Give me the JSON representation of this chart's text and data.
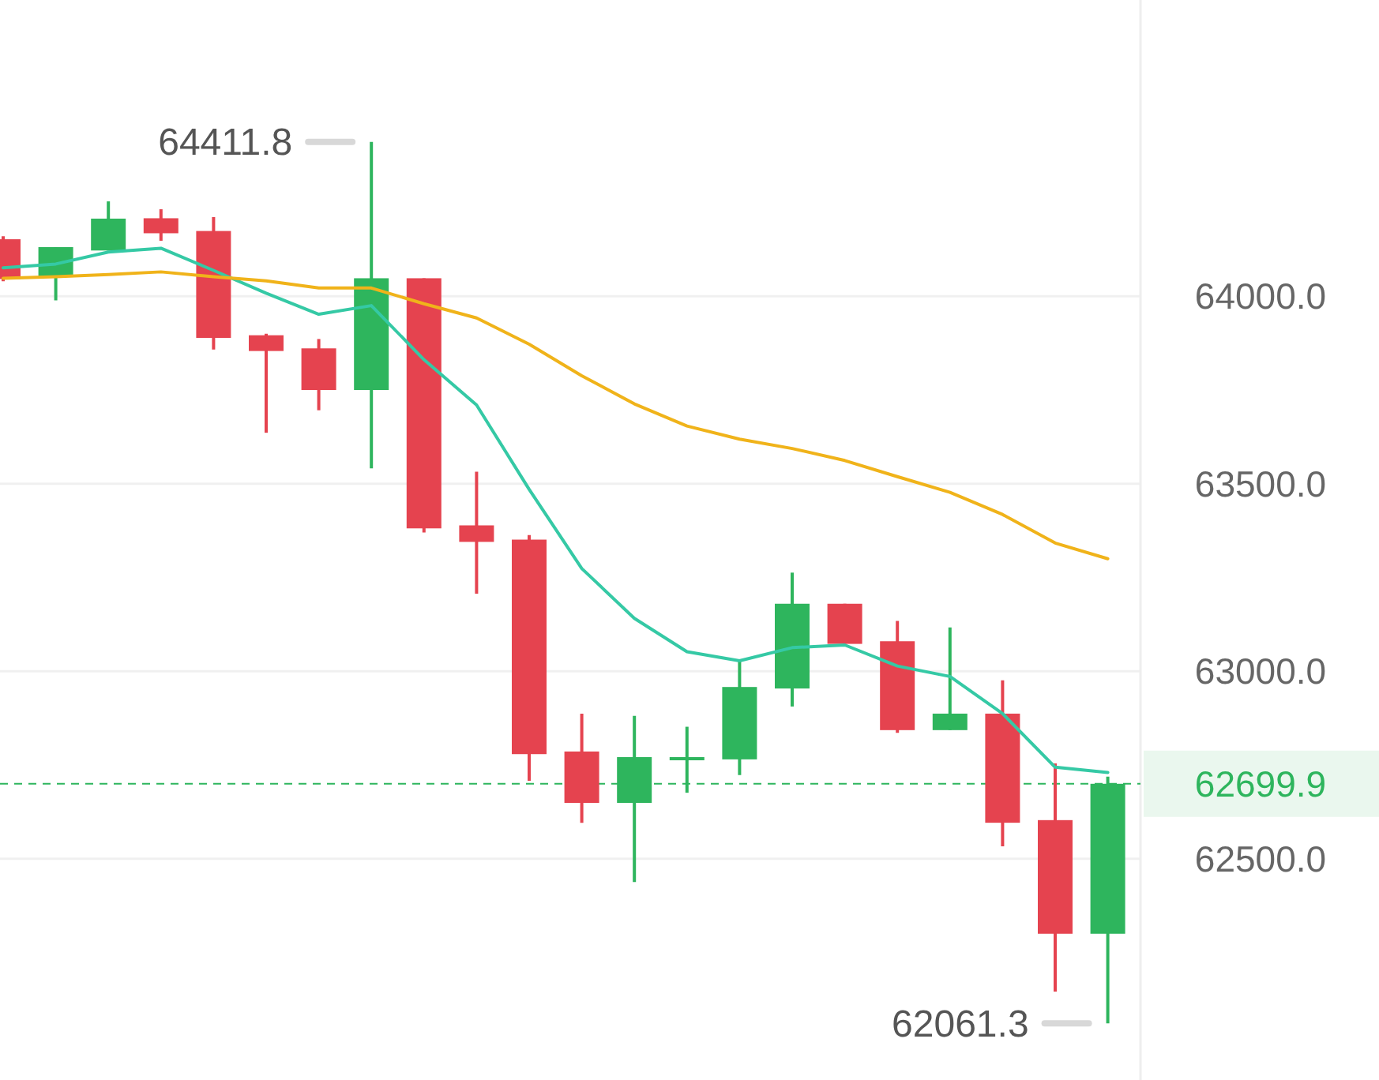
{
  "chart_data": {
    "type": "candlestick",
    "categories": [
      null,
      null,
      null,
      null,
      null,
      null,
      null,
      null,
      null,
      null,
      null,
      null,
      null,
      null,
      null,
      null,
      null,
      null,
      null,
      null,
      null,
      null
    ],
    "ohlc": [
      [
        64152,
        64160,
        64040,
        64046
      ],
      [
        64051,
        64131,
        63989,
        64131
      ],
      [
        64122,
        64253,
        64122,
        64207
      ],
      [
        64208,
        64232,
        64148,
        64168
      ],
      [
        64174,
        64211,
        63858,
        63889
      ],
      [
        63896,
        63900,
        63636,
        63854
      ],
      [
        63861,
        63886,
        63696,
        63750
      ],
      [
        63750,
        64411.8,
        63541,
        64048
      ],
      [
        64048,
        64048,
        63370,
        63381
      ],
      [
        63389,
        63532,
        63207,
        63345
      ],
      [
        63351,
        63363,
        62708,
        62779
      ],
      [
        62786,
        62887,
        62596,
        62649
      ],
      [
        62649,
        62881,
        62438,
        62771
      ],
      [
        62763,
        62852,
        62676,
        62771
      ],
      [
        62765,
        63028,
        62723,
        62958
      ],
      [
        62954,
        63263,
        62906,
        63180
      ],
      [
        63180,
        63180,
        63073,
        63073
      ],
      [
        63080,
        63134,
        62836,
        62843
      ],
      [
        62843,
        63117,
        62843,
        62887
      ],
      [
        62887,
        62976,
        62533,
        62596
      ],
      [
        62603,
        62754,
        62146,
        62300
      ],
      [
        62300,
        62719,
        62061.3,
        62699.9
      ]
    ],
    "colors": [
      "#e5434f",
      "#2eb55d",
      "#2eb55d",
      "#e5434f",
      "#e5434f",
      "#e5434f",
      "#e5434f",
      "#2eb55d",
      "#e5434f",
      "#e5434f",
      "#e5434f",
      "#e5434f",
      "#2eb55d",
      "#2eb55d",
      "#2eb55d",
      "#2eb55d",
      "#e5434f",
      "#e5434f",
      "#2eb55d",
      "#e5434f",
      "#e5434f",
      "#2eb55d"
    ],
    "series": [
      {
        "type": "line",
        "color": "#35c9a5",
        "values": [
          64076,
          64086,
          64118,
          64128,
          64069,
          64008,
          63952,
          63975,
          63831,
          63710,
          63485,
          63274,
          63141,
          63052,
          63028,
          63063,
          63070,
          63014,
          62986,
          62887,
          62744,
          62730
        ]
      },
      {
        "type": "line",
        "color": "#f0b31a",
        "values": [
          64048,
          64052,
          64058,
          64065,
          64052,
          64041,
          64022,
          64022,
          63980,
          63942,
          63872,
          63788,
          63713,
          63654,
          63619,
          63594,
          63562,
          63519,
          63477,
          63418,
          63342,
          63300
        ]
      }
    ],
    "ylim": [
      61910,
      64790
    ],
    "yticks": [
      {
        "value": 62500,
        "label": "62500.0"
      },
      {
        "value": 63000,
        "label": "63000.0"
      },
      {
        "value": 63500,
        "label": "63500.0"
      },
      {
        "value": 64000,
        "label": "64000.0"
      }
    ],
    "grid": "y",
    "ref_lines": [
      {
        "axis": "y",
        "value": 62699.9,
        "label": "62699.9",
        "color": "#2eb55d",
        "line_style": "dashed"
      }
    ],
    "annotations": [
      "64411.8",
      "62061.3"
    ]
  }
}
